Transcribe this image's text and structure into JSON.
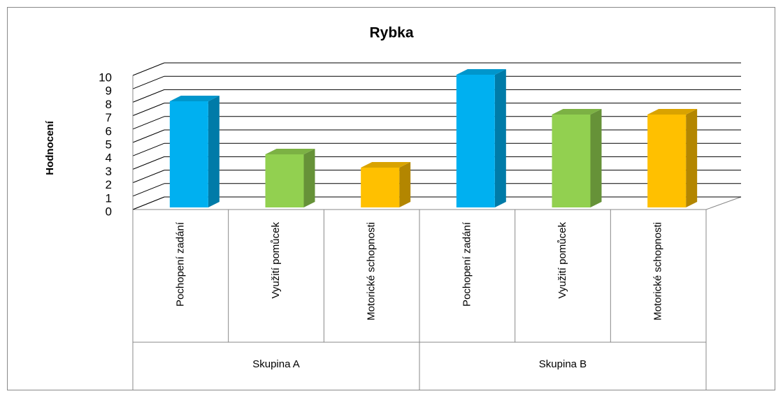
{
  "chart_data": {
    "type": "bar3d",
    "title": "Rybka",
    "y_label": "Hodnocení",
    "categories": [
      "Pochopení zadání",
      "Využití pomůcek",
      "Motorické schopnosti",
      "Pochopení zadání",
      "Využití pomůcek",
      "Motorické schopnosti"
    ],
    "groups": [
      "Skupina A",
      "Skupina B"
    ],
    "values": [
      8,
      4,
      3,
      10,
      7,
      7
    ],
    "colors": [
      "#00b0f0",
      "#92d050",
      "#ffc000",
      "#00b0f0",
      "#92d050",
      "#ffc000"
    ],
    "ylim": [
      0,
      10
    ],
    "yticks": [
      0,
      1,
      2,
      3,
      4,
      5,
      6,
      7,
      8,
      9,
      10
    ],
    "grid": true
  }
}
